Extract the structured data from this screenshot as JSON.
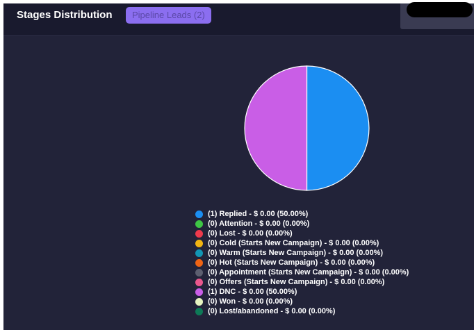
{
  "header": {
    "title": "Stages Distribution",
    "pipeline_button": "Pipeline Leads (2)"
  },
  "chart_data": {
    "type": "pie",
    "slices": [
      {
        "label": "Replied",
        "value": 1,
        "percent": 50.0,
        "color": "#1b8ef2"
      },
      {
        "label": "DNC",
        "value": 1,
        "percent": 50.0,
        "color": "#c95ee6"
      }
    ]
  },
  "legend": [
    {
      "text": "(1) Replied - $ 0.00 (50.00%)",
      "color": "#1b8ef2"
    },
    {
      "text": "(0) Attention - $ 0.00 (0.00%)",
      "color": "#3ec645"
    },
    {
      "text": "(0) Lost - $ 0.00 (0.00%)",
      "color": "#ee3a4c"
    },
    {
      "text": "(0) Cold (Starts New Campaign) - $ 0.00 (0.00%)",
      "color": "#f2b412"
    },
    {
      "text": "(0) Warm (Starts New Campaign) - $ 0.00 (0.00%)",
      "color": "#1296b4"
    },
    {
      "text": "(0) Hot (Starts New Campaign) - $ 0.00 (0.00%)",
      "color": "#f06414"
    },
    {
      "text": "(0) Appointment (Starts New Campaign) - $ 0.00 (0.00%)",
      "color": "#5d5f70"
    },
    {
      "text": "(0) Offers (Starts New Campaign) - $ 0.00 (0.00%)",
      "color": "#e9578d"
    },
    {
      "text": "(1) DNC - $ 0.00 (50.00%)",
      "color": "#c95ee6"
    },
    {
      "text": "(0) Won - $ 0.00 (0.00%)",
      "color": "#e6f4c0"
    },
    {
      "text": "(0) Lost/abandoned - $ 0.00 (0.00%)",
      "color": "#0e7a57"
    }
  ]
}
